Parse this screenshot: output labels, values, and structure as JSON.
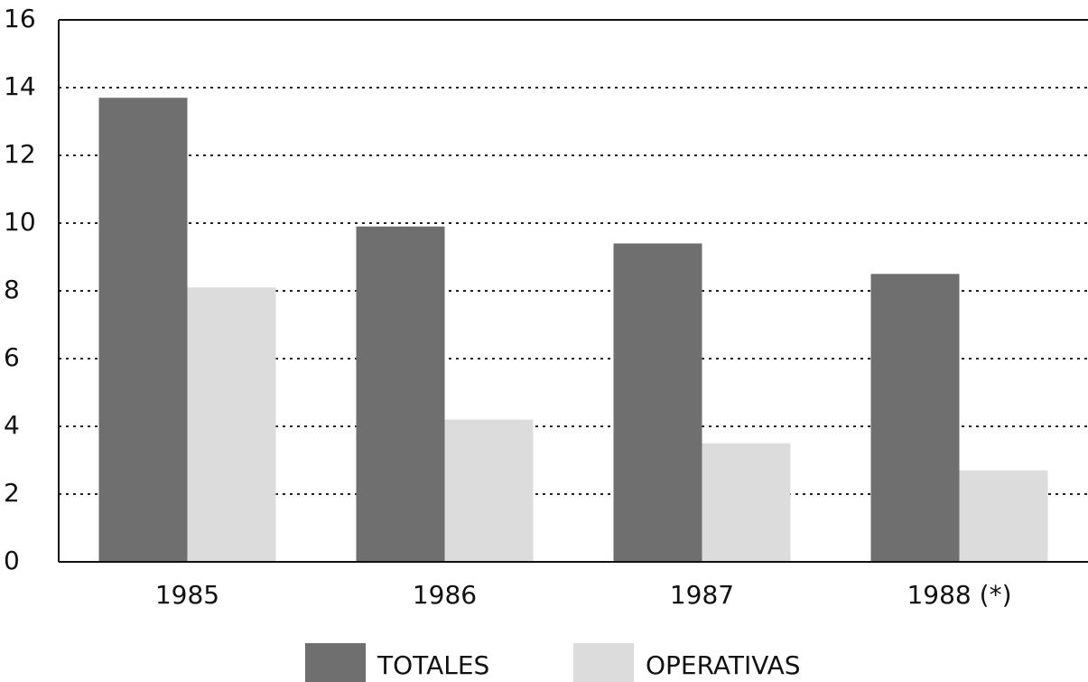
{
  "chart_data": {
    "type": "bar",
    "categories": [
      "1985",
      "1986",
      "1987",
      "1988 (*)"
    ],
    "series": [
      {
        "name": "TOTALES",
        "color": "#6f6f6f",
        "values": [
          13.7,
          9.9,
          9.4,
          8.5
        ]
      },
      {
        "name": "OPERATIVAS",
        "color": "#dcdcdc",
        "values": [
          8.1,
          4.2,
          3.5,
          2.7
        ]
      }
    ],
    "ylim": [
      0,
      16
    ],
    "yticks": [
      0,
      2,
      4,
      6,
      8,
      10,
      12,
      14,
      16
    ],
    "grid": true,
    "legend": "bottom"
  }
}
